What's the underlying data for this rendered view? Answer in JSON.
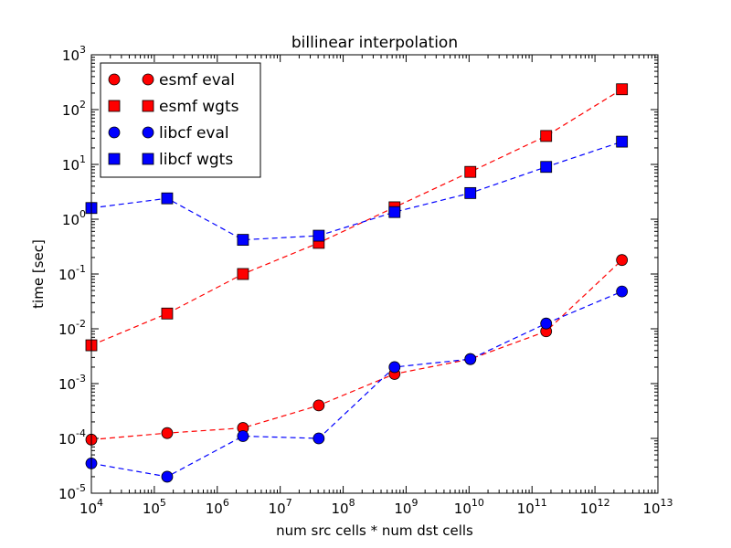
{
  "chart_data": {
    "type": "scatter",
    "title": "billinear interpolation",
    "xlabel": "num src cells * num dst cells",
    "ylabel": "time [sec]",
    "xscale": "log",
    "yscale": "log",
    "xlim": [
      10000,
      10000000000000
    ],
    "ylim": [
      1e-05,
      1000
    ],
    "x_ticks": [
      {
        "value": 10000,
        "base": "10",
        "exp": "4"
      },
      {
        "value": 100000,
        "base": "10",
        "exp": "5"
      },
      {
        "value": 1000000,
        "base": "10",
        "exp": "6"
      },
      {
        "value": 10000000,
        "base": "10",
        "exp": "7"
      },
      {
        "value": 100000000,
        "base": "10",
        "exp": "8"
      },
      {
        "value": 1000000000,
        "base": "10",
        "exp": "9"
      },
      {
        "value": 10000000000,
        "base": "10",
        "exp": "10"
      },
      {
        "value": 100000000000,
        "base": "10",
        "exp": "11"
      },
      {
        "value": 1000000000000,
        "base": "10",
        "exp": "12"
      },
      {
        "value": 10000000000000,
        "base": "10",
        "exp": "13"
      }
    ],
    "y_ticks": [
      {
        "value": 1e-05,
        "base": "10",
        "exp": "-5"
      },
      {
        "value": 0.0001,
        "base": "10",
        "exp": "-4"
      },
      {
        "value": 0.001,
        "base": "10",
        "exp": "-3"
      },
      {
        "value": 0.01,
        "base": "10",
        "exp": "-2"
      },
      {
        "value": 0.1,
        "base": "10",
        "exp": "-1"
      },
      {
        "value": 1,
        "base": "10",
        "exp": "0"
      },
      {
        "value": 10,
        "base": "10",
        "exp": "1"
      },
      {
        "value": 100,
        "base": "10",
        "exp": "2"
      },
      {
        "value": 1000,
        "base": "10",
        "exp": "3"
      }
    ],
    "x": [
      10000,
      160000,
      2560000,
      40960000,
      655360000,
      10485760000,
      167772160000,
      2684354560000
    ],
    "series": [
      {
        "name": "esmf eval",
        "marker": "circle",
        "color": "#ff0000",
        "values": [
          9.5e-05,
          0.000125,
          0.000155,
          0.0004,
          0.0015,
          0.0028,
          0.009,
          0.18
        ]
      },
      {
        "name": "esmf wgts",
        "marker": "square",
        "color": "#ff0000",
        "values": [
          0.005,
          0.019,
          0.1,
          0.37,
          1.65,
          7.3,
          33,
          235
        ]
      },
      {
        "name": "libcf eval",
        "marker": "circle",
        "color": "#0000ff",
        "values": [
          3.5e-05,
          2e-05,
          0.00011,
          0.0001,
          0.002,
          0.0028,
          0.0125,
          0.048
        ]
      },
      {
        "name": "libcf wgts",
        "marker": "square",
        "color": "#0000ff",
        "values": [
          1.6,
          2.4,
          0.42,
          0.5,
          1.35,
          3.0,
          9.0,
          26
        ]
      }
    ],
    "line_style": "dashed",
    "legend_position": "top-left",
    "grid": false
  }
}
